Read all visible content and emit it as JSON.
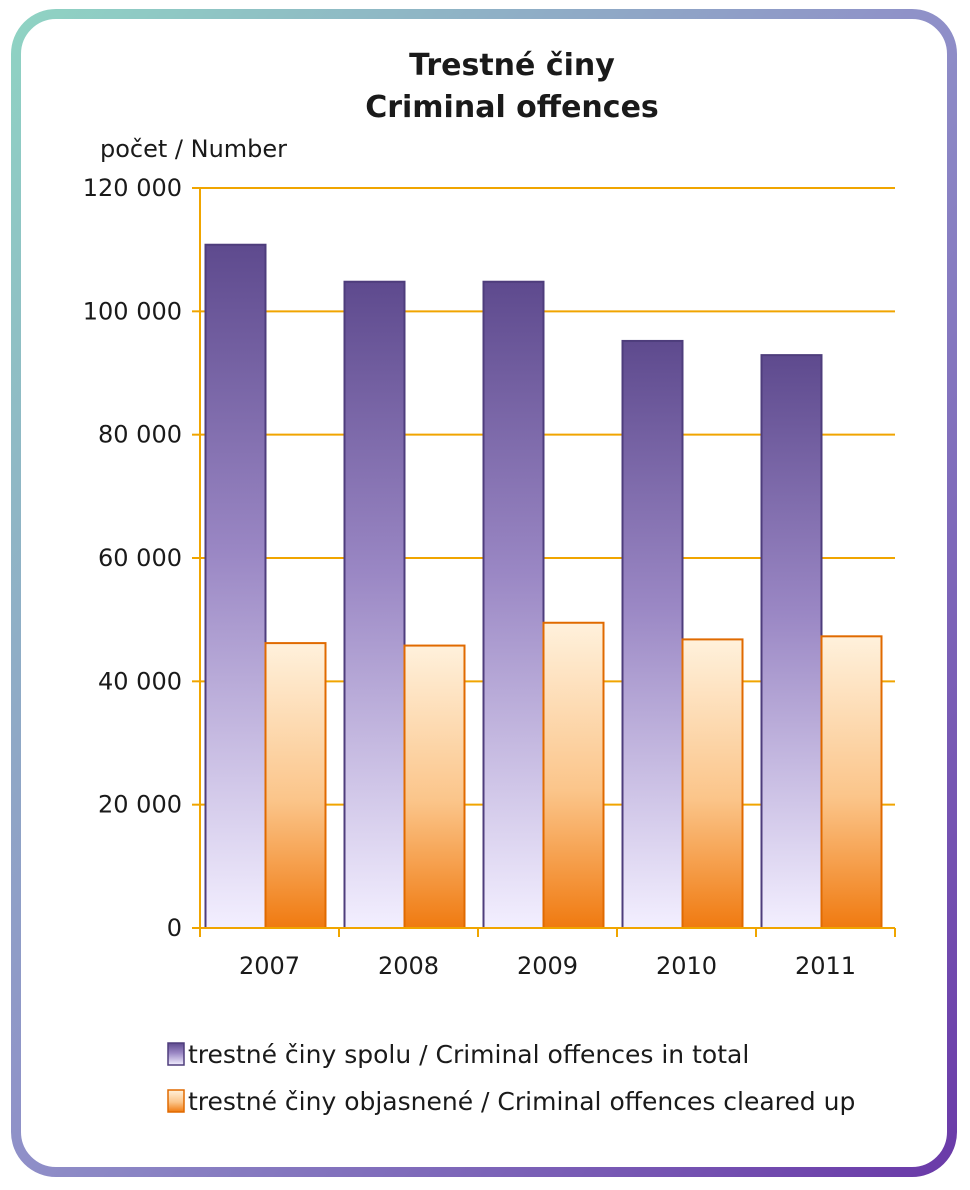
{
  "colors": {
    "frame_start": "#8fd3c3",
    "frame_end": "#6a3aa8",
    "grid": "#f0a500",
    "series_total_top": "#5e4a8e",
    "series_total_bottom": "#f3efff",
    "series_cleared_top": "#fff1dc",
    "series_cleared_bottom": "#f07a10"
  },
  "chart_data": {
    "type": "bar",
    "title_line1": "Trestné činy",
    "title_line2": "Criminal offences",
    "ylabel": "počet / Number",
    "ylim": [
      0,
      120000
    ],
    "yticks": [
      0,
      20000,
      40000,
      60000,
      80000,
      100000,
      120000
    ],
    "ytick_labels": [
      "0",
      "20 000",
      "40 000",
      "60 000",
      "80 000",
      "100 000",
      "120 000"
    ],
    "categories": [
      "2007",
      "2008",
      "2009",
      "2010",
      "2011"
    ],
    "grid": true,
    "legend_position": "bottom",
    "series": [
      {
        "name": "trestné činy spolu / Criminal offences in total",
        "values": [
          110800,
          104800,
          104800,
          95200,
          92900
        ]
      },
      {
        "name": "trestné činy objasnené / Criminal offences cleared up",
        "values": [
          46200,
          45800,
          49500,
          46800,
          47300
        ]
      }
    ]
  }
}
